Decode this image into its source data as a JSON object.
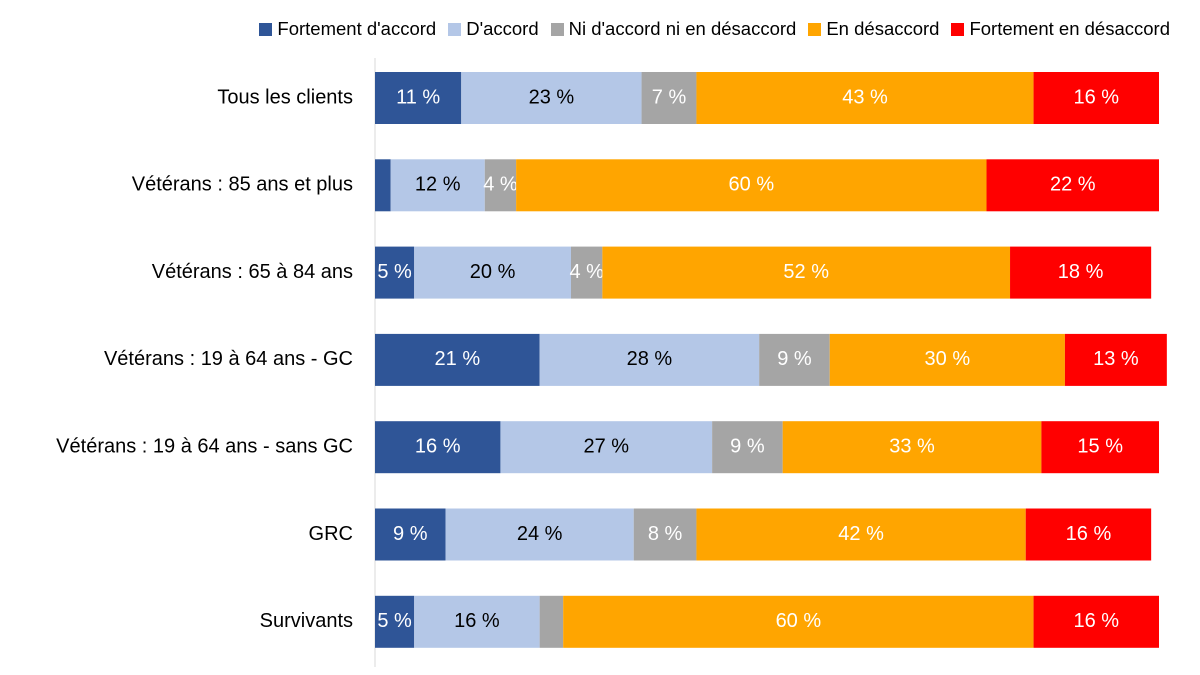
{
  "chart_data": {
    "type": "stacked-bar-horizontal",
    "categories": [
      "Tous les clients",
      "Vétérans : 85 ans et plus",
      "Vétérans : 65 à 84 ans",
      "Vétérans : 19 à 64 ans - GC",
      "Vétérans : 19 à 64 ans - sans GC",
      "GRC",
      "Survivants"
    ],
    "series": [
      {
        "name": "Fortement d'accord",
        "color": "#2f5597",
        "label_color": "#ffffff",
        "values": [
          11,
          2,
          5,
          21,
          16,
          9,
          5
        ],
        "value_labels": [
          "11 %",
          null,
          "5 %",
          "21 %",
          "16 %",
          "9 %",
          "5 %"
        ]
      },
      {
        "name": "D'accord",
        "color": "#b4c7e7",
        "label_color": "#000000",
        "values": [
          23,
          12,
          20,
          28,
          27,
          24,
          16
        ],
        "value_labels": [
          "23 %",
          "12 %",
          "20 %",
          "28 %",
          "27 %",
          "24 %",
          "16 %"
        ]
      },
      {
        "name": "Ni d'accord ni en désaccord",
        "color": "#a5a5a5",
        "label_color": "#ffffff",
        "values": [
          7,
          4,
          4,
          9,
          9,
          8,
          3
        ],
        "value_labels": [
          "7 %",
          "4 %",
          "4 %",
          "9 %",
          "9 %",
          "8 %",
          null
        ]
      },
      {
        "name": "En désaccord",
        "color": "#ffa500",
        "label_color": "#ffffff",
        "values": [
          43,
          60,
          52,
          30,
          33,
          42,
          60
        ],
        "value_labels": [
          "43 %",
          "60 %",
          "52 %",
          "30 %",
          "33 %",
          "42 %",
          "60 %"
        ]
      },
      {
        "name": "Fortement en désaccord",
        "color": "#ff0000",
        "label_color": "#ffffff",
        "values": [
          16,
          22,
          18,
          13,
          15,
          16,
          16
        ],
        "value_labels": [
          "16 %",
          "22 %",
          "18 %",
          "13 %",
          "15 %",
          "16 %",
          "16 %"
        ]
      }
    ],
    "xlim": [
      0,
      100
    ]
  }
}
